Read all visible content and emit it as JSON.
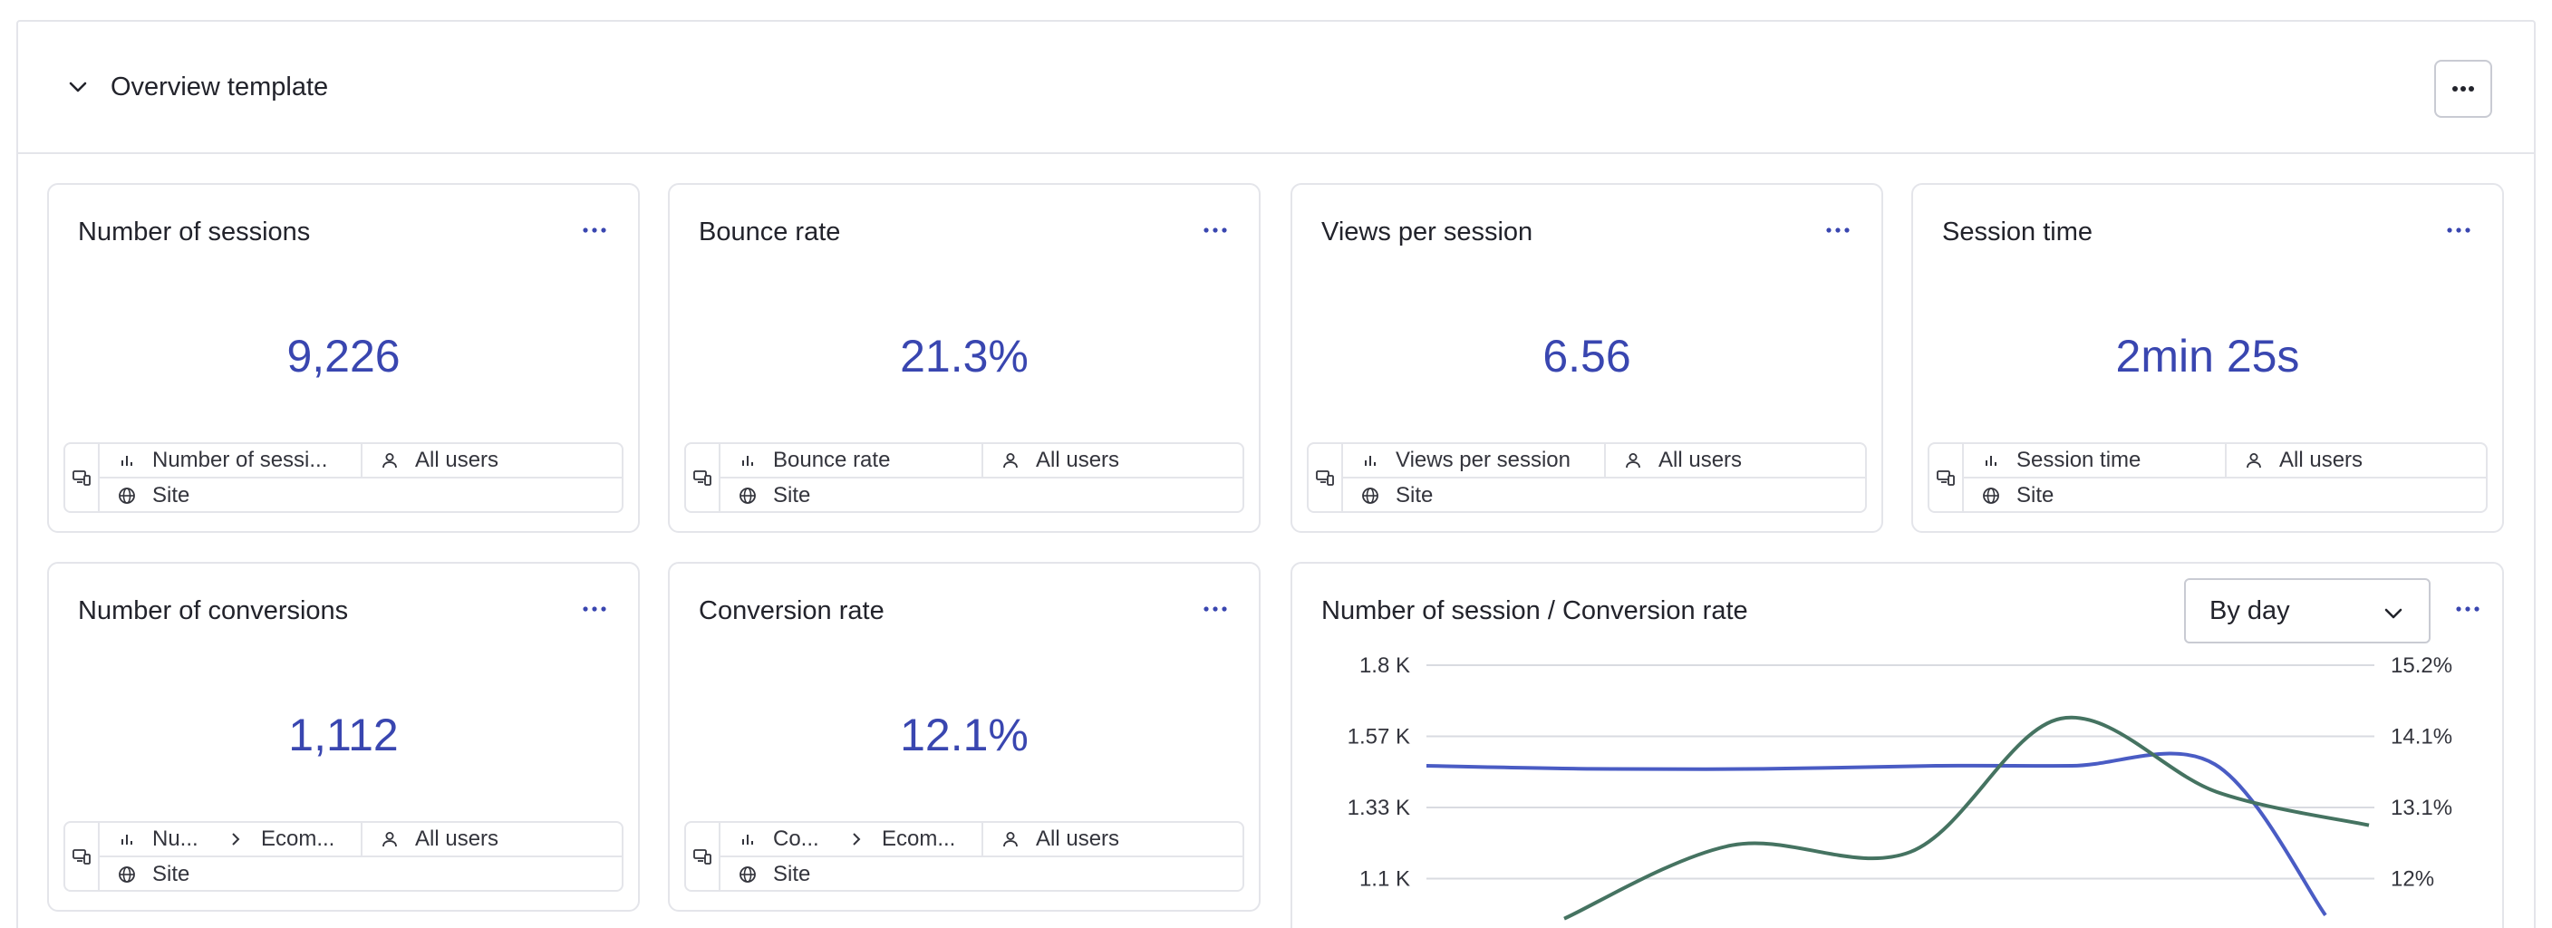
{
  "panel": {
    "title": "Overview template"
  },
  "cards": [
    {
      "title": "Number of sessions",
      "value": "9,226",
      "metric": "Number of sessi...",
      "audience": "All users",
      "scope": "Site"
    },
    {
      "title": "Bounce rate",
      "value": "21.3%",
      "metric": "Bounce rate",
      "audience": "All users",
      "scope": "Site"
    },
    {
      "title": "Views per session",
      "value": "6.56",
      "metric": "Views per session",
      "audience": "All users",
      "scope": "Site"
    },
    {
      "title": "Session time",
      "value": "2min 25s",
      "metric": "Session time",
      "audience": "All users",
      "scope": "Site"
    },
    {
      "title": "Number of conversions",
      "value": "1,112",
      "metric": "Nu...",
      "goal": "Ecom...",
      "audience": "All users",
      "scope": "Site"
    },
    {
      "title": "Conversion rate",
      "value": "12.1%",
      "metric": "Co...",
      "goal": "Ecom...",
      "audience": "All users",
      "scope": "Site"
    }
  ],
  "chart_card": {
    "title": "Number of session / Conversion rate",
    "granularity": "By day"
  },
  "icons": {
    "more": "more-horizontal-icon",
    "collapse": "chevron-down-icon",
    "metric": "bar-chart-icon",
    "audience": "user-icon",
    "scope": "globe-icon",
    "device": "devices-icon"
  },
  "colors": {
    "accent": "#3946b0",
    "series_sessions": "#4a5cc4",
    "series_conversion": "#457361"
  },
  "chart_data": {
    "type": "line",
    "title": "Number of session / Conversion rate",
    "y_left_ticks": [
      "1.8 K",
      "1.57 K",
      "1.33 K",
      "1.1 K"
    ],
    "y_right_ticks": [
      "15.2%",
      "14.1%",
      "13.1%",
      "12%"
    ],
    "ylim_left": [
      1100,
      1800
    ],
    "ylim_right": [
      12,
      15.2
    ],
    "grid": true,
    "series": [
      {
        "axis": "left",
        "color": "#4a5cc4",
        "values": [
          1470,
          1460,
          1460,
          1470,
          1470,
          1475,
          980
        ]
      },
      {
        "axis": "right",
        "color": "#457361",
        "values": [
          11.4,
          12.5,
          12.4,
          14.4,
          13.3,
          12.8
        ]
      }
    ]
  }
}
